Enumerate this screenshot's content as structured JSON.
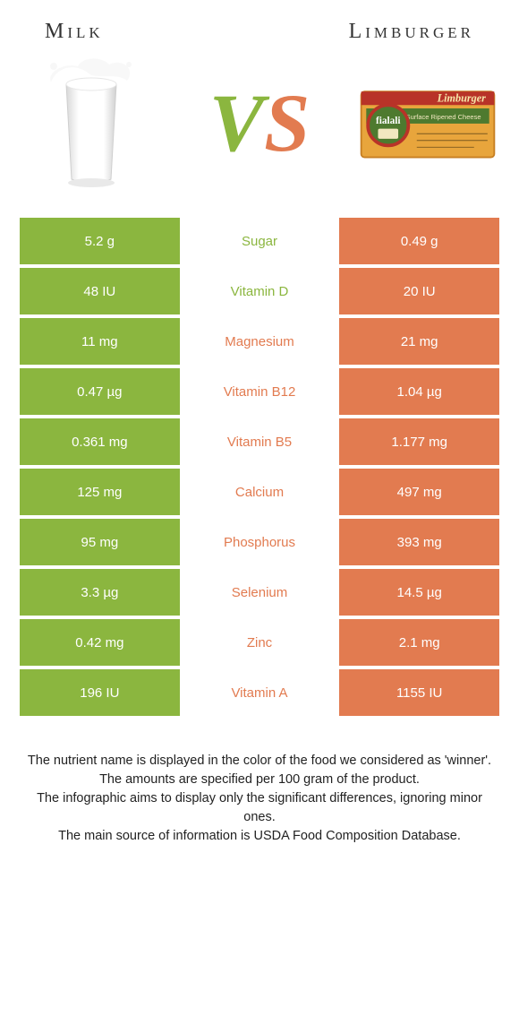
{
  "colors": {
    "left": "#8bb63f",
    "right": "#e27b50",
    "text_dark": "#333333"
  },
  "titles": {
    "left": "Milk",
    "right": "Limburger"
  },
  "vs": {
    "v": "V",
    "s": "S"
  },
  "rows": [
    {
      "left": "5.2 g",
      "label": "Sugar",
      "right": "0.49 g",
      "winner": "left"
    },
    {
      "left": "48 IU",
      "label": "Vitamin D",
      "right": "20 IU",
      "winner": "left"
    },
    {
      "left": "11 mg",
      "label": "Magnesium",
      "right": "21 mg",
      "winner": "right"
    },
    {
      "left": "0.47 µg",
      "label": "Vitamin B12",
      "right": "1.04 µg",
      "winner": "right"
    },
    {
      "left": "0.361 mg",
      "label": "Vitamin B5",
      "right": "1.177 mg",
      "winner": "right"
    },
    {
      "left": "125 mg",
      "label": "Calcium",
      "right": "497 mg",
      "winner": "right"
    },
    {
      "left": "95 mg",
      "label": "Phosphorus",
      "right": "393 mg",
      "winner": "right"
    },
    {
      "left": "3.3 µg",
      "label": "Selenium",
      "right": "14.5 µg",
      "winner": "right"
    },
    {
      "left": "0.42 mg",
      "label": "Zinc",
      "right": "2.1 mg",
      "winner": "right"
    },
    {
      "left": "196 IU",
      "label": "Vitamin A",
      "right": "1155 IU",
      "winner": "right"
    }
  ],
  "footnote": {
    "l1": "The nutrient name is displayed in the color of the food we considered as 'winner'.",
    "l2": "The amounts are specified per 100 gram of the product.",
    "l3": "The infographic aims to display only the significant differences, ignoring minor ones.",
    "l4": "The main source of information is USDA Food Composition Database."
  },
  "cheese_box": {
    "brand": "fialali",
    "label": "Limburger"
  }
}
